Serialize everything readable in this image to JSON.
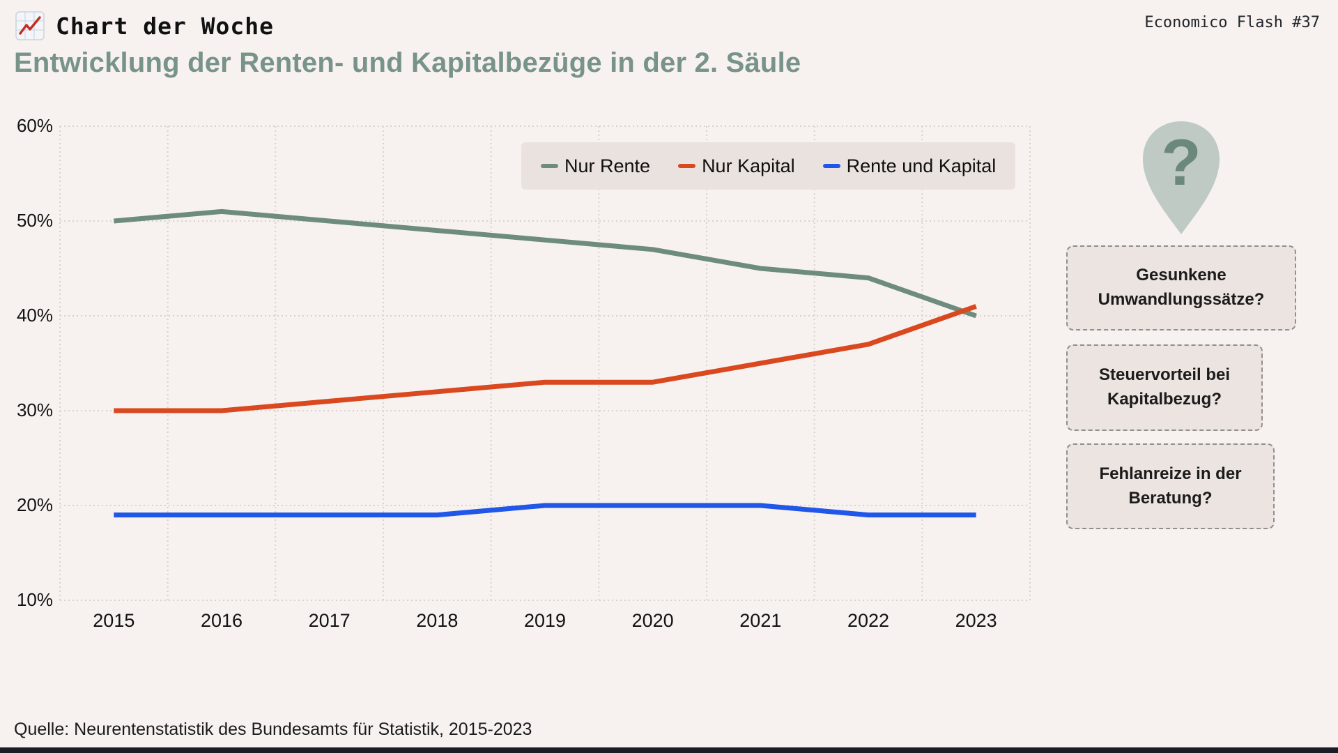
{
  "header": {
    "brand": "Chart der Woche",
    "issue": "Economico Flash #37"
  },
  "title": "Entwicklung der Renten- und Kapitalbezüge in der 2. Säule",
  "source": "Quelle: Neurentenstatistik des Bundesamts für Statistik, 2015-2023",
  "annotations": {
    "items": [
      "Gesunkene Umwandlungssätze?",
      "Steuervorteil bei Kapitalbezug?",
      "Fehlanreize in der Beratung?"
    ]
  },
  "icons": {
    "brand_icon": "chart-increasing-icon",
    "question_pin": "question-mark-pin-icon"
  },
  "colors": {
    "background": "#f7f2ef",
    "title_green": "#78938a",
    "grid": "#d8d2ce",
    "legend_bg": "#eae2de",
    "box_bg": "#ece4e0",
    "pin_light": "#bfcac4",
    "pin_dark": "#6b897b",
    "bottom_bar": "#1a1d24"
  },
  "chart_data": {
    "type": "line",
    "title": "Entwicklung der Renten- und Kapitalbezüge in der 2. Säule",
    "x": [
      2015,
      2016,
      2017,
      2018,
      2019,
      2020,
      2021,
      2022,
      2023
    ],
    "series": [
      {
        "name": "Nur Rente",
        "color": "#6e8c7e",
        "values": [
          50,
          51,
          50,
          49,
          48,
          47,
          45,
          44,
          40
        ]
      },
      {
        "name": "Nur Kapital",
        "color": "#d9481e",
        "values": [
          30,
          30,
          31,
          32,
          33,
          33,
          35,
          37,
          41
        ]
      },
      {
        "name": "Rente und Kapital",
        "color": "#2157e8",
        "values": [
          19,
          19,
          19,
          19,
          20,
          20,
          20,
          19,
          19
        ]
      }
    ],
    "xlabel": "",
    "ylabel": "",
    "ylim": [
      10,
      60
    ],
    "yticks": [
      10,
      20,
      30,
      40,
      50,
      60
    ],
    "ytick_suffix": "%",
    "grid": "dotted, vertical lines offset between years",
    "legend_position": "top-right inside plot"
  }
}
